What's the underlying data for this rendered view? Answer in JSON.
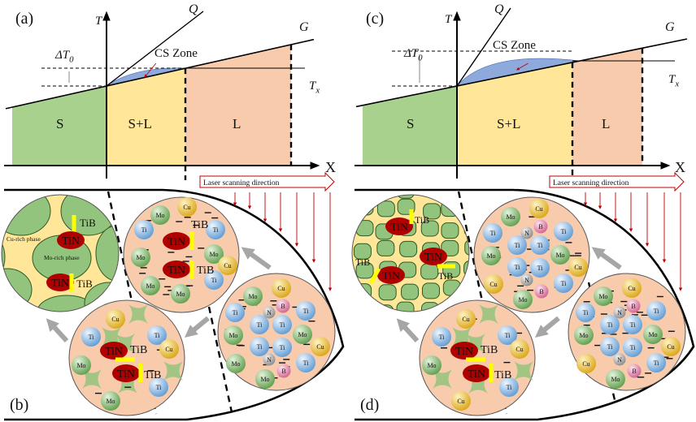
{
  "colors": {
    "solid": "#a9d18e",
    "mushy": "#ffe699",
    "liquid": "#f8cbad",
    "cs_zone": "#8ea9db",
    "laser_arrow": "#c00000",
    "tin": "#b00000",
    "tib": "#ffff00",
    "mo_rich": "#93c47d",
    "cu_rich": "#ffe699",
    "ti": "#9dc3e6",
    "mo": "#8fc27a",
    "cu": "#f0c43c",
    "n": "#b0b0b0",
    "b": "#e38bb3",
    "process_arrow": "#a6a6a6"
  },
  "panels": [
    {
      "top": {
        "label": "(a)",
        "axis_t": "T",
        "axis_x": "X",
        "line_q": "Q",
        "line_g": "G",
        "delta_t": "ΔT",
        "delta_sub": "0",
        "tx": "T",
        "tx_sub": "x",
        "cs_zone": "CS Zone",
        "regions": [
          "S",
          "S+L",
          "L"
        ],
        "laser": "Laser scanning direction"
      },
      "bottom": {
        "label": "(b)",
        "final_circle": {
          "phase_labels": [
            "Cu-rich phase",
            "Mo-rich phase"
          ],
          "tin": [
            "TiN",
            "TiN"
          ],
          "tib": [
            "TiB",
            "TiB"
          ]
        },
        "nucleation_circle": {
          "atoms": [
            "Cu",
            "Mo",
            "Ti",
            "Ti",
            "Mo",
            "Mo",
            "Cu",
            "Ti",
            "Mo",
            "Mo"
          ],
          "tin": [
            "TiN",
            "TiN"
          ],
          "tib": [
            "TiB",
            "TiB"
          ]
        },
        "liquid_circle": {
          "atoms": [
            "Mo",
            "Cu",
            "B",
            "N",
            "Ti",
            "Ti",
            "Ti",
            "Ti",
            "Mo",
            "Mo",
            "Ti",
            "Ti",
            "Cu",
            "N",
            "Mo",
            "Ti",
            "B",
            "Mo"
          ]
        },
        "growth_circle": {
          "atoms": [
            "Cu",
            "Ti",
            "Ti",
            "Cu",
            "Mo",
            "Ti",
            "Mo"
          ],
          "tin": [
            "TiN",
            "TiN"
          ],
          "tib": [
            "TiB",
            "TiB"
          ]
        }
      }
    },
    {
      "top": {
        "label": "(c)",
        "axis_t": "T",
        "axis_x": "X",
        "line_q": "Q",
        "line_g": "G",
        "delta_t": "ΔT",
        "delta_sub": "0",
        "tx": "T",
        "tx_sub": "x",
        "cs_zone": "CS Zone",
        "regions": [
          "S",
          "S+L",
          "L"
        ],
        "laser": "Laser scanning direction"
      },
      "bottom": {
        "label": "(d)",
        "final_circle": {
          "tin": [
            "TiN",
            "TiN",
            "TiN"
          ],
          "tib": [
            "TiB",
            "TiB",
            "TiB"
          ]
        },
        "nucleation_circle": {
          "atoms": [
            "Mo",
            "Cu",
            "B",
            "N",
            "Ti",
            "Ti",
            "Ti",
            "Ti",
            "Mo",
            "Mo",
            "Ti",
            "Ti",
            "Cu",
            "N",
            "Cu",
            "Ti",
            "B",
            "Mo"
          ]
        },
        "liquid_circle": {
          "atoms": [
            "Mo",
            "Cu",
            "B",
            "N",
            "Ti",
            "Ti",
            "Ti",
            "Ti",
            "Mo",
            "Mo",
            "Ti",
            "Ti",
            "Cu",
            "N",
            "Cu",
            "Ti",
            "B",
            "Mo"
          ]
        },
        "growth_circle": {
          "atoms": [
            "Cu",
            "Ti",
            "Ti",
            "Cu",
            "Mo",
            "Ti",
            "Cu"
          ],
          "tin": [
            "TiN",
            "TiN"
          ],
          "tib": [
            "TiB",
            "TiB"
          ]
        }
      }
    }
  ]
}
